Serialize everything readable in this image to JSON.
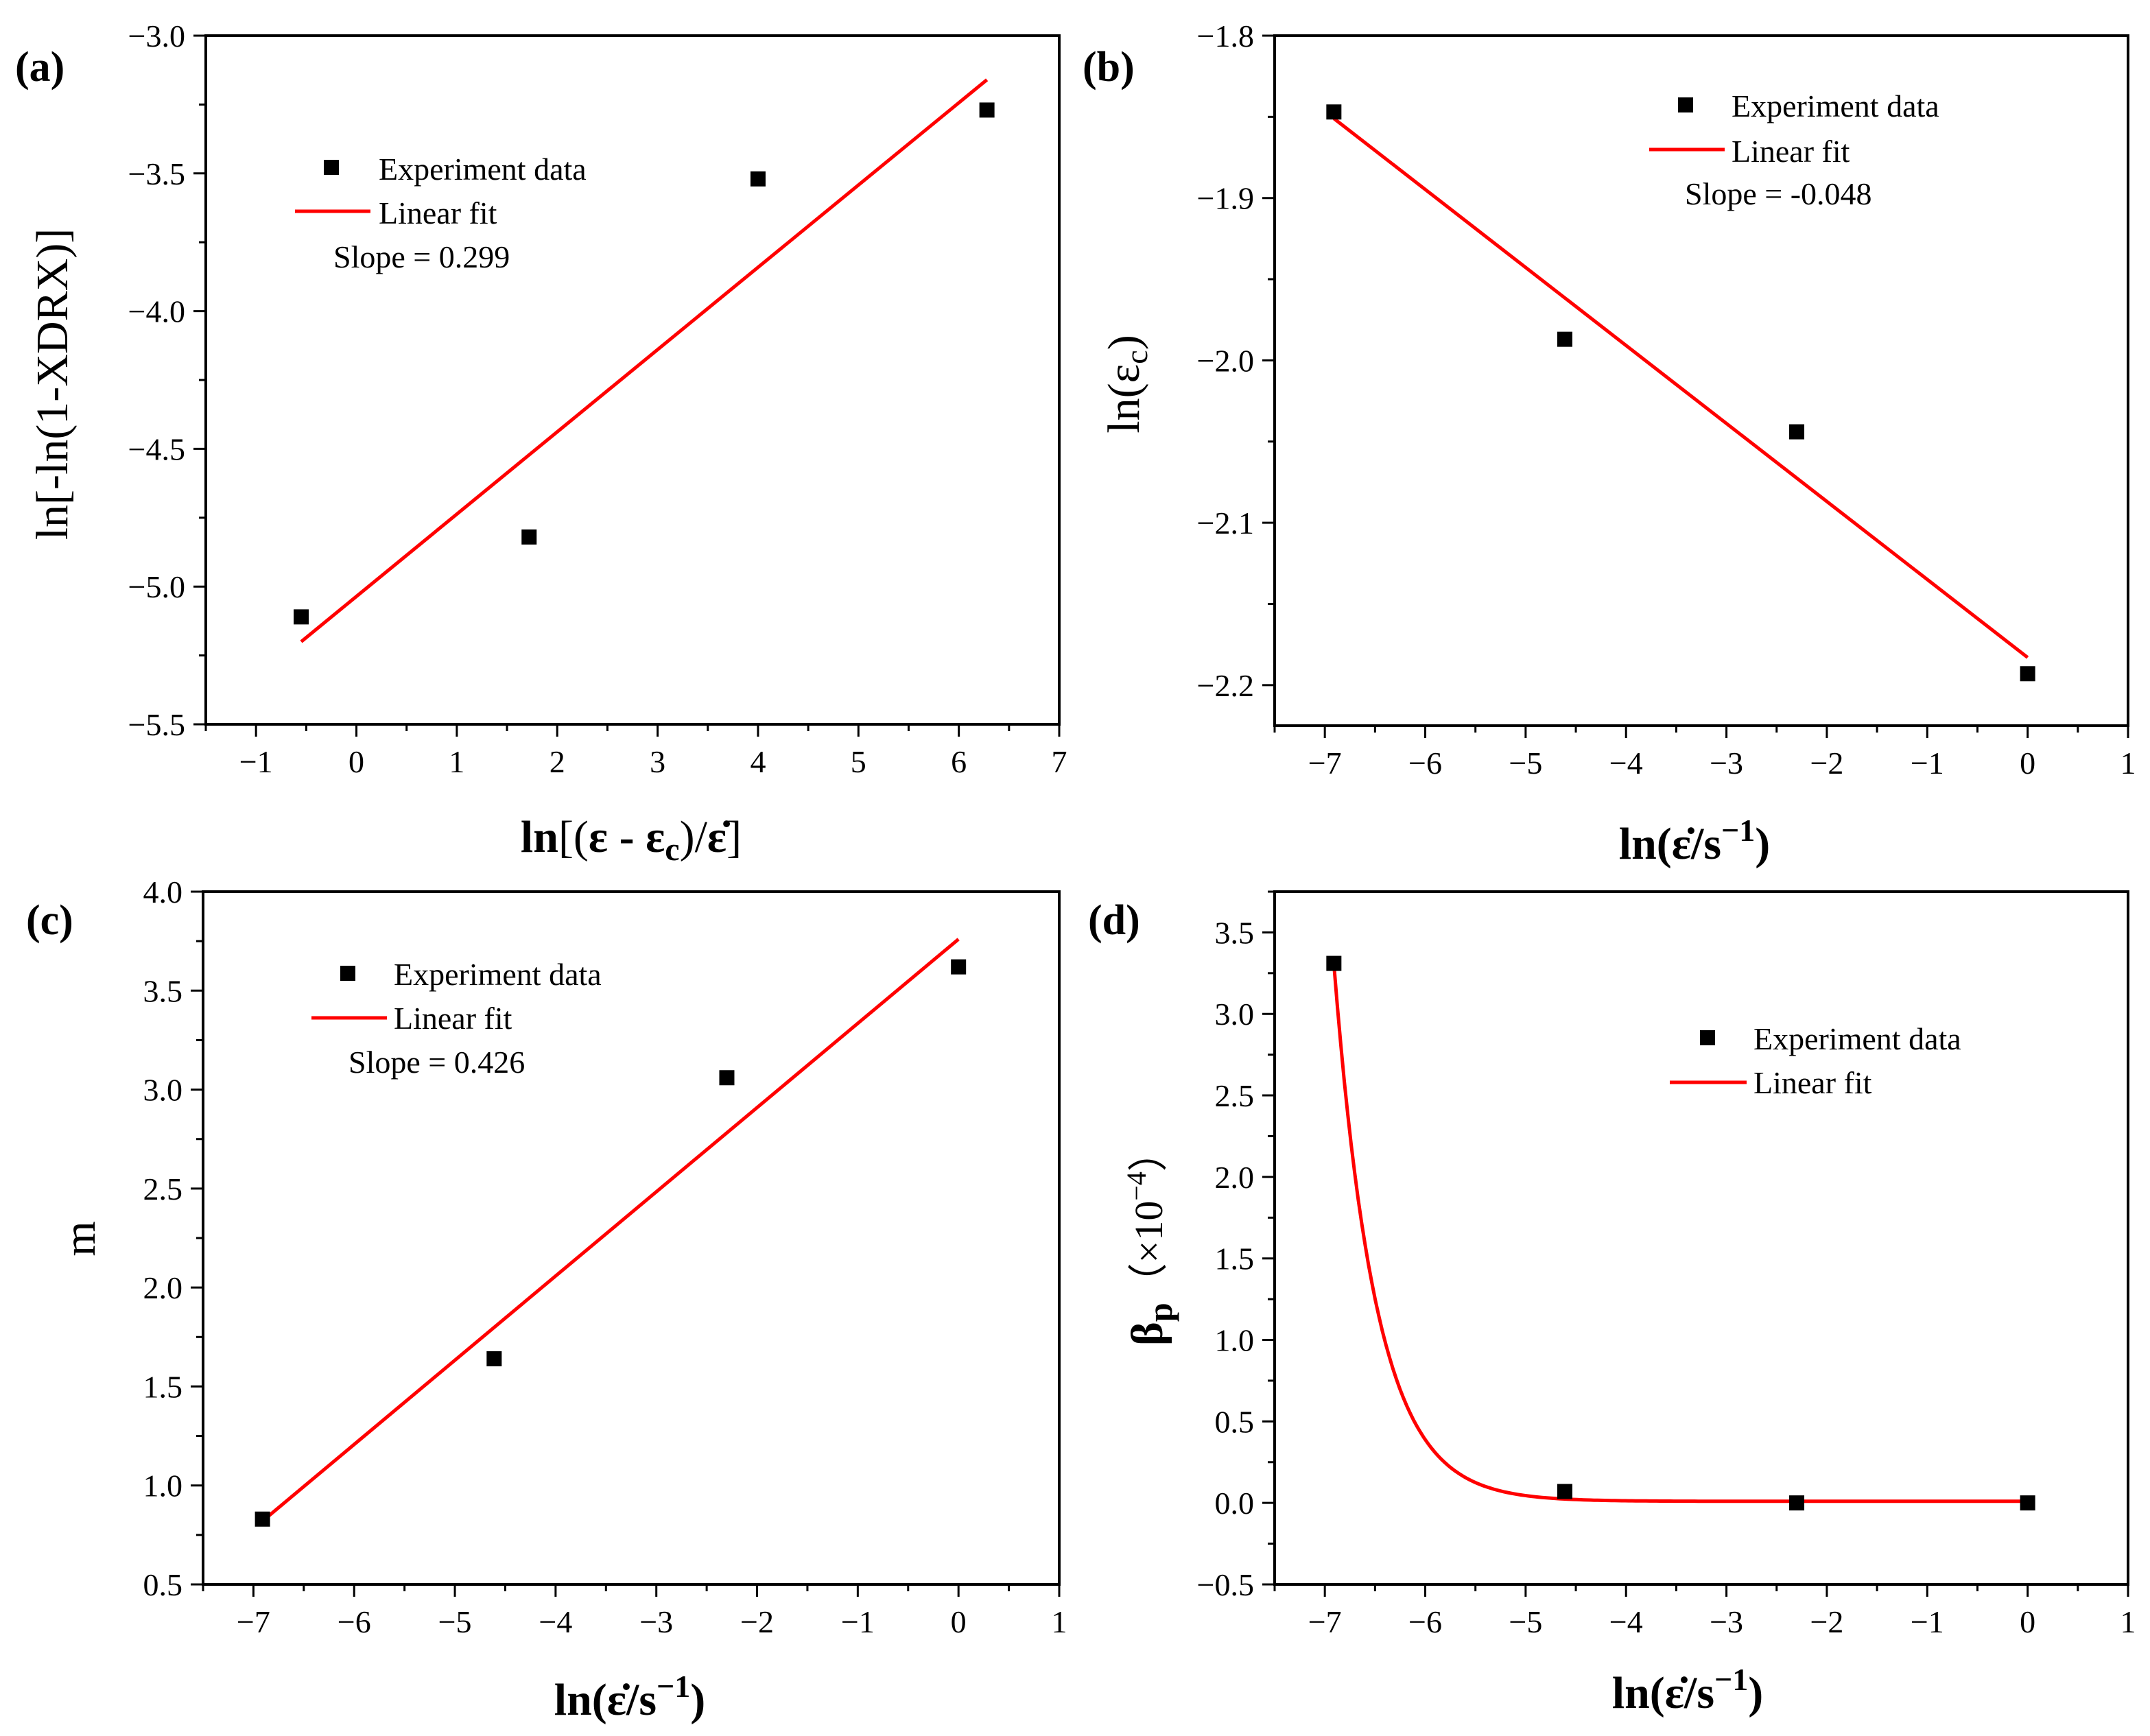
{
  "chart_data": [
    {
      "id": "a",
      "type": "scatter",
      "panel_label": "(a)",
      "xlabel": "ln[(ε - εc)/ε̇]",
      "ylabel": "ln[-ln(1-XDRX)]",
      "xlim": [
        -1.5,
        7
      ],
      "ylim": [
        -5.5,
        -3.0
      ],
      "xticks": [
        -1,
        0,
        1,
        2,
        3,
        4,
        5,
        6,
        7
      ],
      "yticks": [
        -5.5,
        -5.0,
        -4.5,
        -4.0,
        -3.5,
        -3.0
      ],
      "ytick_labels": [
        "−5.5",
        "−5.0",
        "−4.5",
        "−4.0",
        "−3.5",
        "−3.0"
      ],
      "xtick_labels": [
        "−1",
        "0",
        "1",
        "2",
        "3",
        "4",
        "5",
        "6",
        "7"
      ],
      "series": [
        {
          "name": "Experiment data",
          "kind": "scatter",
          "x": [
            -0.55,
            1.72,
            4.0,
            6.28
          ],
          "y": [
            -5.11,
            -4.82,
            -3.52,
            -3.27
          ]
        },
        {
          "name": "Linear fit",
          "kind": "line",
          "x": [
            -0.55,
            6.28
          ],
          "y": [
            -5.2,
            -3.16
          ]
        }
      ],
      "legend": [
        "Experiment data",
        "Linear fit"
      ],
      "annotation": "Slope = 0.299"
    },
    {
      "id": "b",
      "type": "scatter",
      "panel_label": "(b)",
      "xlabel": "ln(ε̇/s⁻¹)",
      "ylabel": "ln(εc)",
      "xlim": [
        -7.5,
        1
      ],
      "ylim": [
        -2.225,
        -1.8
      ],
      "xticks": [
        -7,
        -6,
        -5,
        -4,
        -3,
        -2,
        -1,
        0,
        1
      ],
      "yticks": [
        -2.2,
        -2.1,
        -2.0,
        -1.9,
        -1.8
      ],
      "ytick_labels": [
        "−2.2",
        "−2.1",
        "−2.0",
        "−1.9",
        "−1.8"
      ],
      "xtick_labels": [
        "−7",
        "−6",
        "−5",
        "−4",
        "−3",
        "−2",
        "−1",
        "0",
        "1"
      ],
      "series": [
        {
          "name": "Experiment data",
          "kind": "scatter",
          "x": [
            -6.91,
            -4.61,
            -2.3,
            0
          ],
          "y": [
            -1.847,
            -1.987,
            -2.044,
            -2.193
          ]
        },
        {
          "name": "Linear fit",
          "kind": "line",
          "x": [
            -6.91,
            0
          ],
          "y": [
            -1.851,
            -2.183
          ]
        }
      ],
      "legend": [
        "Experiment data",
        "Linear fit"
      ],
      "annotation": "Slope = -0.048"
    },
    {
      "id": "c",
      "type": "scatter",
      "panel_label": "(c)",
      "xlabel": "ln(ε̇/s⁻¹)",
      "ylabel": "m",
      "xlim": [
        -7.5,
        1
      ],
      "ylim": [
        0.5,
        4.0
      ],
      "xticks": [
        -7,
        -6,
        -5,
        -4,
        -3,
        -2,
        -1,
        0,
        1
      ],
      "yticks": [
        0.5,
        1.0,
        1.5,
        2.0,
        2.5,
        3.0,
        3.5,
        4.0
      ],
      "ytick_labels": [
        "0.5",
        "1.0",
        "1.5",
        "2.0",
        "2.5",
        "3.0",
        "3.5",
        "4.0"
      ],
      "xtick_labels": [
        "−7",
        "−6",
        "−5",
        "−4",
        "−3",
        "−2",
        "−1",
        "0",
        "1"
      ],
      "series": [
        {
          "name": "Experiment data",
          "kind": "scatter",
          "x": [
            -6.91,
            -4.61,
            -2.3,
            0
          ],
          "y": [
            0.83,
            1.64,
            3.06,
            3.62
          ]
        },
        {
          "name": "Linear fit",
          "kind": "line",
          "x": [
            -6.91,
            0
          ],
          "y": [
            0.82,
            3.76
          ]
        }
      ],
      "legend": [
        "Experiment data",
        "Linear fit"
      ],
      "annotation": "Slope = 0.426"
    },
    {
      "id": "d",
      "type": "scatter",
      "panel_label": "(d)",
      "xlabel": "ln(ε̇/s⁻¹)",
      "ylabel": "βp (×10⁻⁴)",
      "xlim": [
        -7.5,
        1
      ],
      "ylim": [
        -0.5,
        3.75
      ],
      "xticks": [
        -7,
        -6,
        -5,
        -4,
        -3,
        -2,
        -1,
        0,
        1
      ],
      "yticks": [
        -0.5,
        0.0,
        0.5,
        1.0,
        1.5,
        2.0,
        2.5,
        3.0,
        3.5
      ],
      "ytick_labels": [
        "−0.5",
        "0.0",
        "0.5",
        "1.0",
        "1.5",
        "2.0",
        "2.5",
        "3.0",
        "3.5"
      ],
      "xtick_labels": [
        "−7",
        "−6",
        "−5",
        "−4",
        "−3",
        "−2",
        "−1",
        "0",
        "1"
      ],
      "series": [
        {
          "name": "Experiment data",
          "kind": "scatter",
          "x": [
            -6.91,
            -4.61,
            -2.3,
            0
          ],
          "y": [
            3.31,
            0.07,
            0.0,
            0.0
          ]
        },
        {
          "name": "Linear fit",
          "kind": "curve",
          "model": "y = a*exp(-(x - x0)/t) + y0",
          "params": {
            "a": 3.3,
            "x0": -6.91,
            "t": 0.42,
            "y0": 0.01
          },
          "x_range": [
            -6.91,
            0
          ]
        }
      ],
      "legend": [
        "Experiment data",
        "Linear fit"
      ],
      "annotation": ""
    }
  ],
  "colors": {
    "fit": "#ff0000",
    "marker": "#000000",
    "axis": "#000000"
  },
  "text": {
    "legend_exp": "Experiment data",
    "legend_fit": "Linear fit",
    "slope_a": "Slope = 0.299",
    "slope_b": "Slope = -0.048",
    "slope_c": "Slope = 0.426",
    "label_a": "(a)",
    "label_b": "(b)",
    "label_c": "(c)",
    "label_d": "(d)",
    "ylabel_c": "m"
  }
}
